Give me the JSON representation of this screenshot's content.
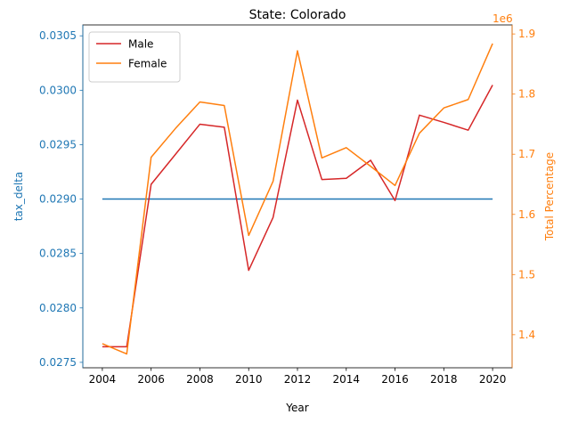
{
  "chart_data": {
    "type": "line",
    "title": "State: Colorado",
    "xlabel": "Year",
    "ylabel_left": "tax_delta",
    "ylabel_right": "Total Percentage",
    "right_axis_offset_label": "1e6",
    "x": [
      2004,
      2005,
      2006,
      2007,
      2008,
      2009,
      2010,
      2011,
      2012,
      2013,
      2014,
      2015,
      2016,
      2017,
      2018,
      2019,
      2020
    ],
    "x_ticks": [
      2004,
      2006,
      2008,
      2010,
      2012,
      2014,
      2016,
      2018,
      2020
    ],
    "xlim": [
      2003.2,
      2020.8
    ],
    "ylim_left": [
      0.02745,
      0.0306
    ],
    "y_ticks_left": [
      "0.0275",
      "0.0280",
      "0.0285",
      "0.0290",
      "0.0295",
      "0.0300",
      "0.0305"
    ],
    "ylim_right": [
      1.345,
      1.915
    ],
    "y_ticks_right": [
      "1.4",
      "1.5",
      "1.6",
      "1.7",
      "1.8",
      "1.9"
    ],
    "left_series": [
      {
        "color": "#1f77b4",
        "values": [
          0.029,
          0.029,
          0.029,
          0.029,
          0.029,
          0.029,
          0.029,
          0.029,
          0.029,
          0.029,
          0.029,
          0.029,
          0.029,
          0.029,
          0.029,
          0.029,
          0.029
        ]
      }
    ],
    "right_series": [
      {
        "name": "Male",
        "color": "#d62728",
        "values": [
          1.38,
          1.38,
          1.65,
          1.7,
          1.75,
          1.745,
          1.507,
          1.595,
          1.79,
          1.658,
          1.66,
          1.69,
          1.623,
          1.765,
          1.753,
          1.74,
          1.815
        ]
      },
      {
        "name": "Female",
        "color": "#ff7f0e",
        "values": [
          1.385,
          1.368,
          1.695,
          1.743,
          1.787,
          1.781,
          1.565,
          1.655,
          1.872,
          1.694,
          1.711,
          1.68,
          1.648,
          1.735,
          1.777,
          1.791,
          1.884
        ]
      }
    ],
    "legend": {
      "placement": "top-left",
      "entries": [
        "Male",
        "Female"
      ]
    },
    "grid": false,
    "left_axis_color": "#1f77b4",
    "right_axis_color": "#ff7f0e"
  }
}
